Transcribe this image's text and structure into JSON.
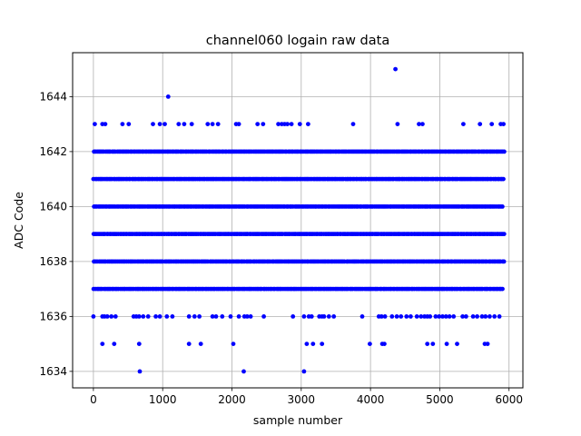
{
  "chart_data": {
    "type": "scatter",
    "title": "channel060 logain raw data",
    "xlabel": "sample number",
    "ylabel": "ADC Code",
    "xlim": [
      -300,
      6200
    ],
    "ylim": [
      1633.4,
      1645.6
    ],
    "xticks": [
      0,
      1000,
      2000,
      3000,
      4000,
      5000,
      6000
    ],
    "yticks": [
      1634,
      1636,
      1638,
      1640,
      1642,
      1644
    ],
    "grid": true,
    "marker_color": "#0000ff",
    "n_samples": 5930,
    "dense_levels": [
      1637,
      1638,
      1639,
      1640,
      1641,
      1642
    ],
    "sparse_points": {
      "1645": [
        4360
      ],
      "1644": [
        1080
      ],
      "1643": [
        20,
        130,
        170,
        420,
        510,
        860,
        960,
        1030,
        1230,
        1310,
        1420,
        1650,
        1720,
        1800,
        2060,
        2100,
        2370,
        2450,
        2670,
        2720,
        2760,
        2800,
        2860,
        2980,
        3100,
        3750,
        4390,
        4700,
        4750,
        5340,
        5580,
        5750,
        5880,
        5920
      ],
      "1636": [
        0,
        130,
        160,
        200,
        260,
        320,
        580,
        620,
        660,
        720,
        790,
        900,
        960,
        1060,
        1140,
        1380,
        1460,
        1530,
        1720,
        1770,
        1860,
        1980,
        2100,
        2180,
        2220,
        2270,
        2460,
        2880,
        3040,
        3110,
        3150,
        3260,
        3300,
        3330,
        3400,
        3470,
        3880,
        4120,
        4160,
        4210,
        4310,
        4380,
        4440,
        4520,
        4580,
        4670,
        4730,
        4780,
        4820,
        4860,
        4940,
        4990,
        5040,
        5090,
        5140,
        5200,
        5330,
        5380,
        5480,
        5540,
        5610,
        5660,
        5720,
        5790,
        5860
      ],
      "1635": [
        130,
        300,
        660,
        1380,
        1550,
        2020,
        3080,
        3170,
        3300,
        3990,
        4170,
        4200,
        4820,
        4900,
        5100,
        5250,
        5650,
        5690
      ],
      "1634": [
        670,
        2170,
        3040
      ]
    }
  }
}
